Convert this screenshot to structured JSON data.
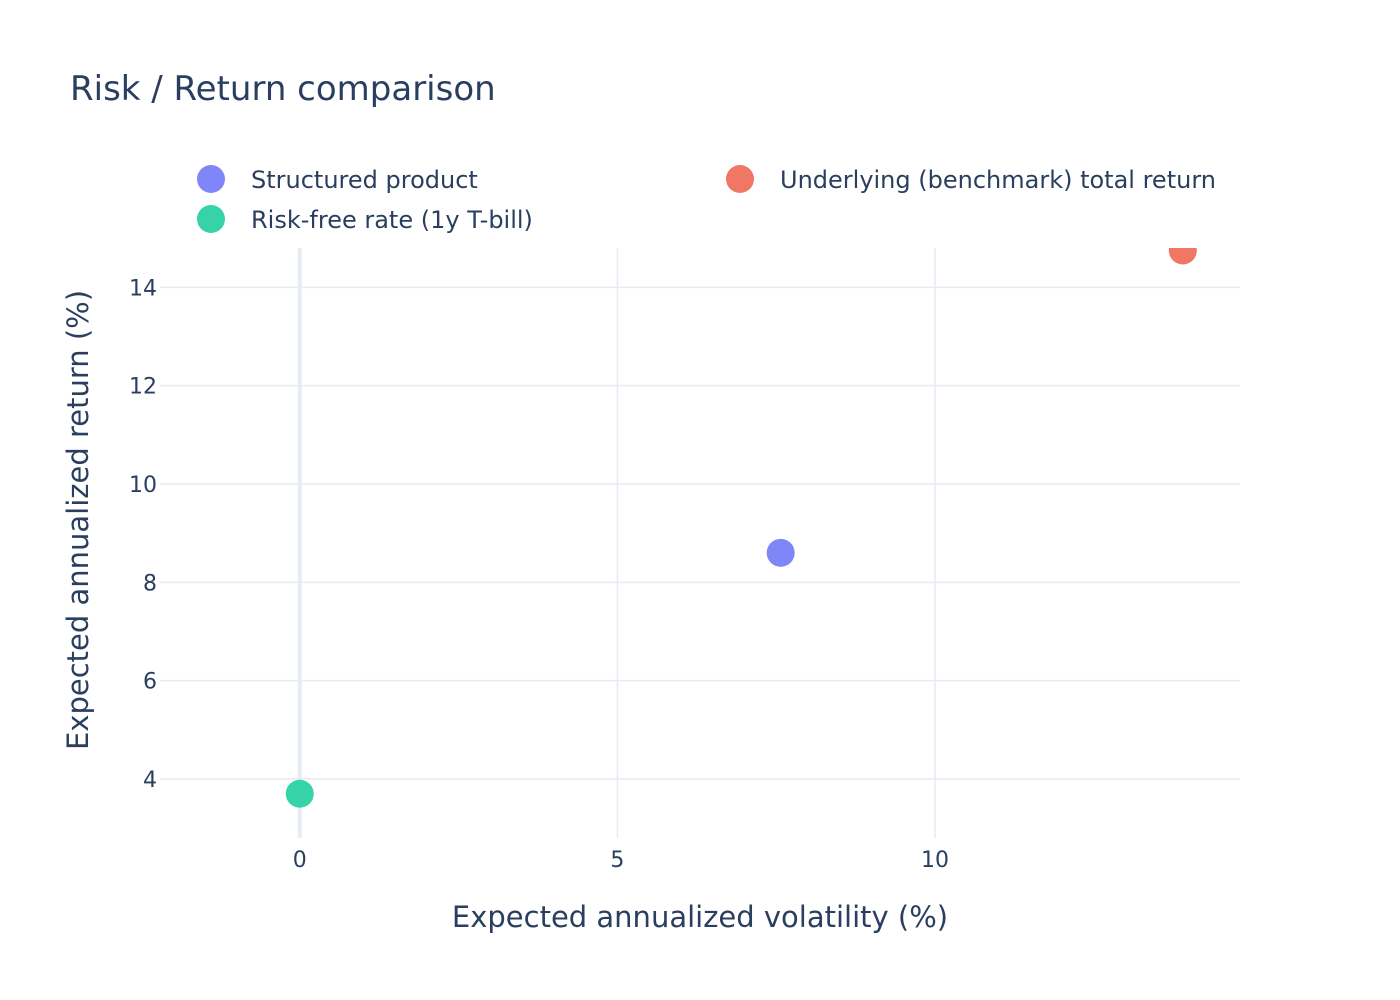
{
  "chart_data": {
    "type": "scatter",
    "title": "Risk / Return comparison",
    "xlabel": "Expected annualized volatility (%)",
    "ylabel": "Expected annualized return (%)",
    "xlim": [
      -2.2,
      14.8
    ],
    "ylim": [
      2.8,
      14.8
    ],
    "xticks": [
      0,
      5,
      10
    ],
    "yticks": [
      4,
      6,
      8,
      10,
      12,
      14
    ],
    "grid": true,
    "legend_position": "top",
    "series": [
      {
        "name": "Structured product",
        "color": "#7f86f7",
        "x": [
          7.57
        ],
        "y": [
          8.6
        ]
      },
      {
        "name": "Underlying (benchmark) total return",
        "color": "#ef7763",
        "x": [
          13.9
        ],
        "y": [
          14.75
        ]
      },
      {
        "name": "Risk-free rate (1y T-bill)",
        "color": "#35d3a7",
        "x": [
          0.0
        ],
        "y": [
          3.7
        ]
      }
    ]
  }
}
